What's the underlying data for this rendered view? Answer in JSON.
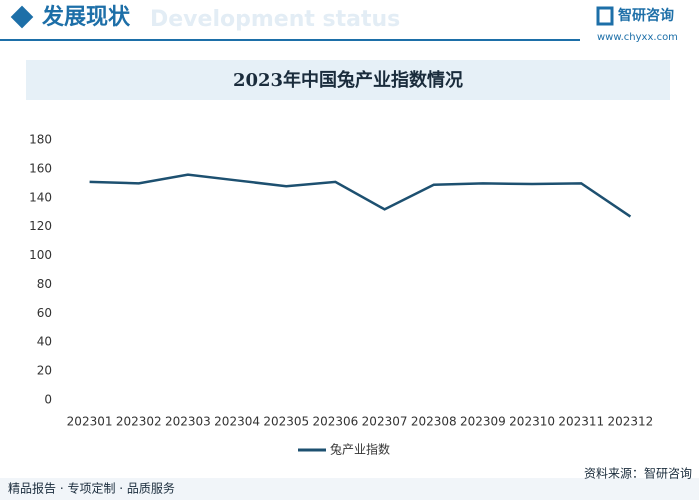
{
  "header": {
    "title": "发展现状",
    "subtitle": "Development status",
    "logo": "智研咨询",
    "url": "www.chyxx.com"
  },
  "chart_data": {
    "type": "line",
    "title": "2023年中国兔产业指数情况",
    "categories": [
      "202301",
      "202302",
      "202303",
      "202304",
      "202305",
      "202306",
      "202307",
      "202308",
      "202309",
      "202310",
      "202311",
      "202312"
    ],
    "series": [
      {
        "name": "兔产业指数",
        "color": "#1d5070",
        "values": [
          151,
          150,
          156,
          152,
          148,
          151,
          132,
          149,
          150,
          149.5,
          150,
          127
        ]
      }
    ],
    "ylim": [
      0,
      180
    ],
    "yticks": [
      0,
      20,
      40,
      60,
      80,
      100,
      120,
      140,
      160,
      180
    ],
    "grid": false,
    "legend": "bottom"
  },
  "footer": {
    "slogan": "精品报告 · 专项定制 · 品质服务",
    "source": "资料来源：智研咨询"
  }
}
